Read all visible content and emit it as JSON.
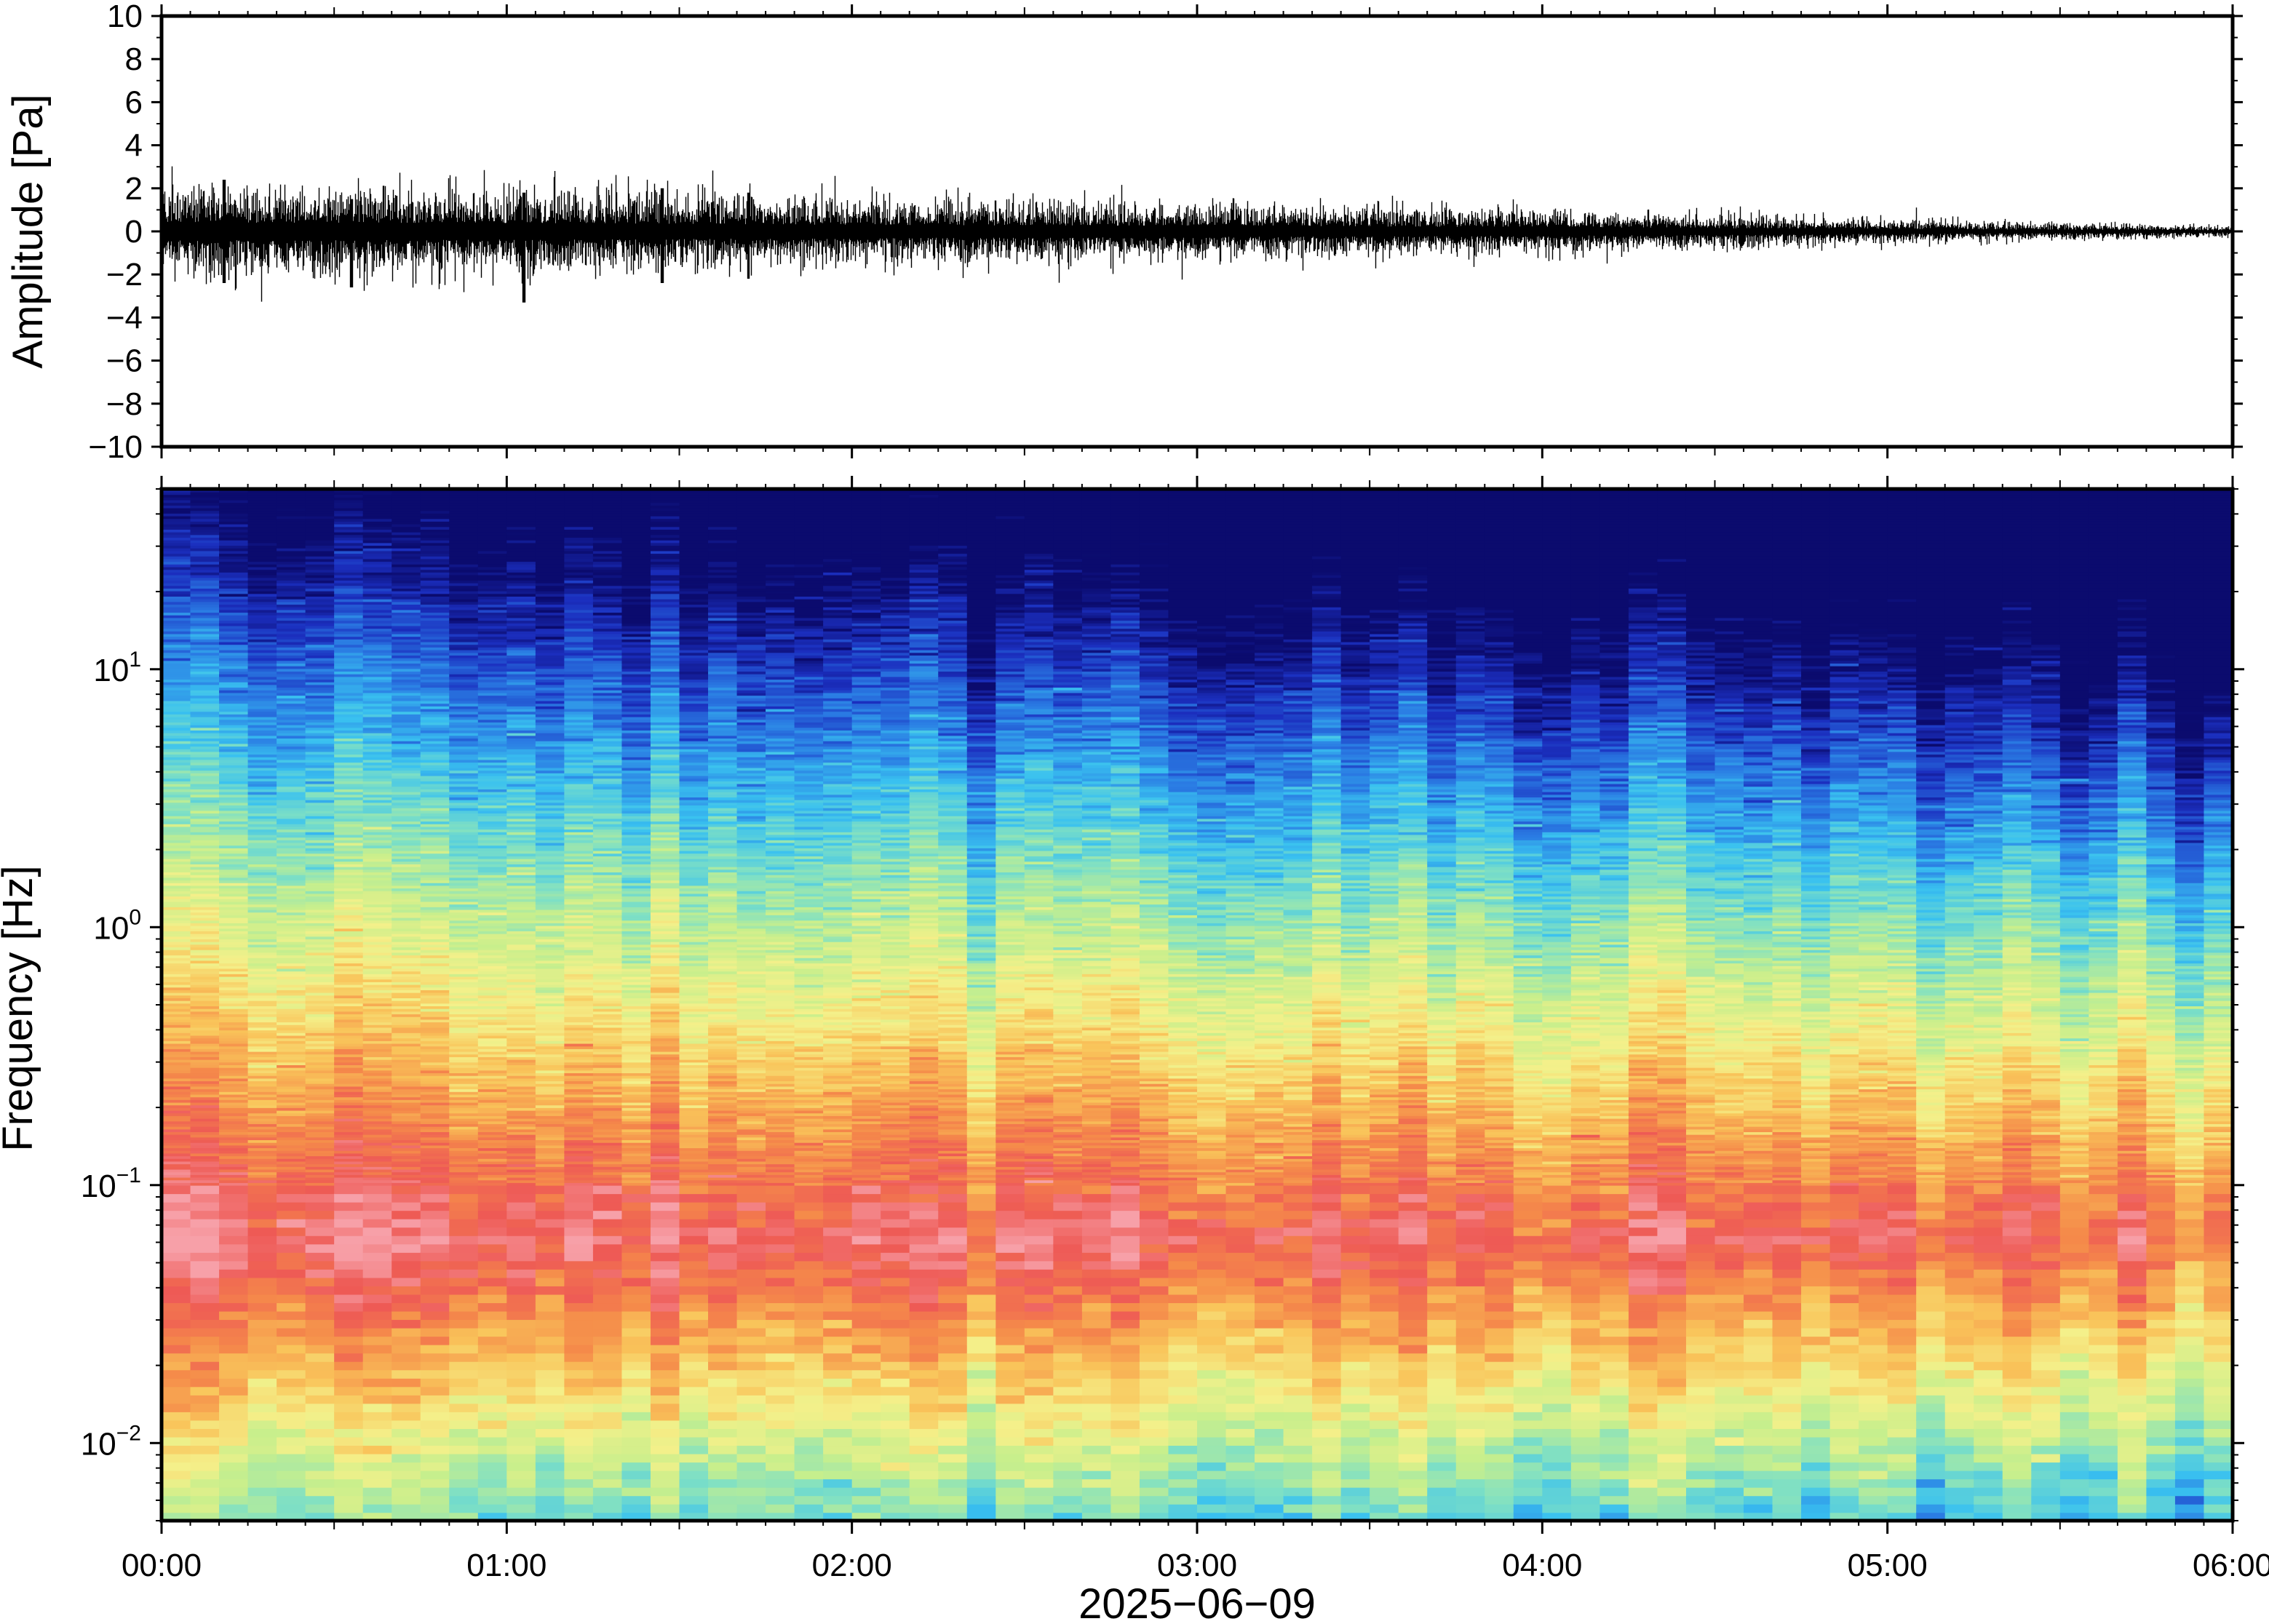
{
  "chart_data": [
    {
      "type": "line",
      "ylabel": "Amplitude [Pa]",
      "ylim": [
        -10,
        10
      ],
      "yticks": [
        "10",
        "8",
        "6",
        "4",
        "2",
        "0",
        "−2",
        "−4",
        "−6",
        "−8",
        "−10"
      ],
      "ytick_values": [
        10,
        8,
        6,
        4,
        2,
        0,
        -2,
        -4,
        -6,
        -8,
        -10
      ],
      "xlim_hours": [
        0,
        6
      ],
      "grid": false,
      "series_color": "#000000",
      "envelope": {
        "x_hours": [
          0.0,
          0.5,
          1.0,
          1.5,
          2.0,
          2.5,
          3.0,
          3.5,
          4.0,
          4.5,
          5.0,
          5.5,
          6.0
        ],
        "amplitude": [
          1.6,
          1.6,
          1.5,
          1.4,
          1.2,
          1.1,
          1.0,
          0.9,
          0.8,
          0.6,
          0.45,
          0.3,
          0.2
        ]
      },
      "spikes": [
        {
          "x_hours": 0.18,
          "min": -2.4,
          "max": 2.4
        },
        {
          "x_hours": 0.55,
          "min": -2.6,
          "max": 1.5
        },
        {
          "x_hours": 1.05,
          "min": -3.3,
          "max": 1.8
        },
        {
          "x_hours": 1.45,
          "min": -2.4,
          "max": 2.0
        },
        {
          "x_hours": 1.7,
          "min": -2.2,
          "max": 1.8
        }
      ]
    },
    {
      "type": "heatmap",
      "ylabel": "Frequency [Hz]",
      "xlabel": "2025−06−09",
      "yscale": "log",
      "ylim": [
        0.005,
        50
      ],
      "ytick_values": [
        0.01,
        0.1,
        1,
        10
      ],
      "ytick_base": "10",
      "ytick_exponents": [
        "−2",
        "−1",
        "0",
        "1"
      ],
      "xlim_hours": [
        0,
        6
      ],
      "xtick_values_hours": [
        0,
        1,
        2,
        3,
        4,
        5,
        6
      ],
      "xticks": [
        "00:00",
        "01:00",
        "02:00",
        "03:00",
        "04:00",
        "05:00",
        "06:00"
      ],
      "colormap": [
        "#0b0b6e",
        "#1b2fbf",
        "#2a7be3",
        "#39c1f0",
        "#7fe0c4",
        "#c8ef8c",
        "#f4f08a",
        "#f9c45a",
        "#f58b4a",
        "#ee5a55",
        "#f7a0a8"
      ],
      "peak_frequency_hz": 0.06
    }
  ]
}
